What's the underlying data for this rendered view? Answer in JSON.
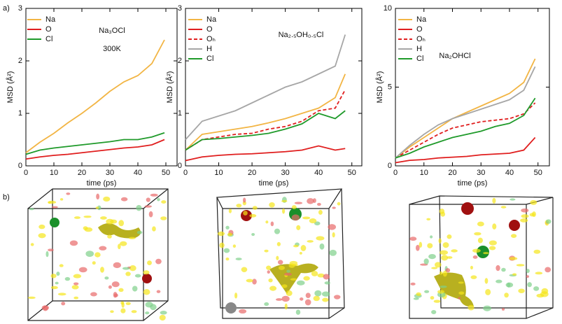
{
  "panel_labels": [
    "a)",
    "b)"
  ],
  "chart_data": [
    {
      "type": "line",
      "title": "Na₃OCl",
      "annotation": "300K",
      "xlabel": "time (ps)",
      "ylabel": "MSD (Å²)",
      "xlim": [
        0,
        54
      ],
      "ylim": [
        0,
        3
      ],
      "xticks": [
        0,
        10,
        20,
        30,
        40,
        50
      ],
      "yticks": [
        0,
        1,
        2,
        3
      ],
      "x": [
        0,
        5,
        10,
        15,
        20,
        25,
        30,
        35,
        40,
        45,
        49.5
      ],
      "series": [
        {
          "name": "Na",
          "color": "#f2b544",
          "values": [
            0.25,
            0.45,
            0.62,
            0.82,
            1.0,
            1.2,
            1.42,
            1.6,
            1.72,
            1.95,
            2.4
          ]
        },
        {
          "name": "O",
          "color": "#e01e1e",
          "values": [
            0.13,
            0.17,
            0.2,
            0.22,
            0.25,
            0.28,
            0.31,
            0.34,
            0.36,
            0.4,
            0.5
          ]
        },
        {
          "name": "Cl",
          "color": "#1f9a2a",
          "values": [
            0.22,
            0.3,
            0.34,
            0.37,
            0.4,
            0.43,
            0.46,
            0.5,
            0.5,
            0.55,
            0.63
          ]
        }
      ]
    },
    {
      "type": "line",
      "title": "Na₂.₅OH₀.₅Cl",
      "xlabel": "time (ps)",
      "ylabel": "MSD (Å²)",
      "xlim": [
        0,
        53
      ],
      "ylim": [
        0,
        3
      ],
      "xticks": [
        0,
        10,
        20,
        30,
        40,
        50
      ],
      "yticks": [
        0,
        1,
        2,
        3
      ],
      "x": [
        0,
        5,
        10,
        15,
        20,
        25,
        30,
        35,
        40,
        45,
        48
      ],
      "series": [
        {
          "name": "Na",
          "color": "#f2b544",
          "values": [
            0.3,
            0.6,
            0.65,
            0.7,
            0.75,
            0.82,
            0.9,
            1.0,
            1.1,
            1.3,
            1.75
          ]
        },
        {
          "name": "O",
          "color": "#e01e1e",
          "values": [
            0.1,
            0.17,
            0.2,
            0.22,
            0.23,
            0.25,
            0.27,
            0.3,
            0.38,
            0.3,
            0.33
          ]
        },
        {
          "name": "Oₕ",
          "color": "#e01e1e",
          "dashed": true,
          "values": [
            0.3,
            0.5,
            0.55,
            0.6,
            0.62,
            0.7,
            0.75,
            0.85,
            1.05,
            1.1,
            1.45
          ]
        },
        {
          "name": "H",
          "color": "#a6a6a6",
          "values": [
            0.5,
            0.85,
            0.95,
            1.05,
            1.2,
            1.35,
            1.5,
            1.6,
            1.75,
            1.9,
            2.5
          ]
        },
        {
          "name": "Cl",
          "color": "#1f9a2a",
          "values": [
            0.3,
            0.5,
            0.52,
            0.55,
            0.58,
            0.62,
            0.7,
            0.8,
            1.0,
            0.9,
            1.05
          ]
        }
      ]
    },
    {
      "type": "line",
      "title": "Na₂OHCl",
      "xlabel": "time (ps)",
      "ylabel": "MSD (Å²)",
      "xlim": [
        0,
        54
      ],
      "ylim": [
        0,
        10
      ],
      "xticks": [
        0,
        10,
        20,
        30,
        40,
        50
      ],
      "yticks": [
        0,
        5,
        10
      ],
      "x": [
        0,
        5,
        10,
        15,
        20,
        25,
        30,
        35,
        40,
        45,
        49
      ],
      "series": [
        {
          "name": "Na",
          "color": "#f2b544",
          "values": [
            0.5,
            1.2,
            1.8,
            2.4,
            3.0,
            3.4,
            3.8,
            4.2,
            4.6,
            5.3,
            6.8
          ]
        },
        {
          "name": "O",
          "color": "#e01e1e",
          "values": [
            0.2,
            0.35,
            0.4,
            0.5,
            0.55,
            0.6,
            0.7,
            0.75,
            0.8,
            1.0,
            1.8
          ]
        },
        {
          "name": "Oₕ",
          "color": "#e01e1e",
          "dashed": true,
          "values": [
            0.5,
            1.0,
            1.5,
            2.0,
            2.4,
            2.6,
            2.8,
            2.9,
            3.0,
            3.3,
            4.0
          ]
        },
        {
          "name": "H",
          "color": "#a6a6a6",
          "values": [
            0.5,
            1.3,
            2.0,
            2.6,
            3.0,
            3.3,
            3.6,
            3.9,
            4.2,
            4.8,
            6.3
          ]
        },
        {
          "name": "Cl",
          "color": "#1f9a2a",
          "values": [
            0.5,
            0.8,
            1.2,
            1.5,
            1.8,
            2.0,
            2.2,
            2.5,
            2.7,
            3.2,
            4.3
          ]
        }
      ]
    }
  ]
}
